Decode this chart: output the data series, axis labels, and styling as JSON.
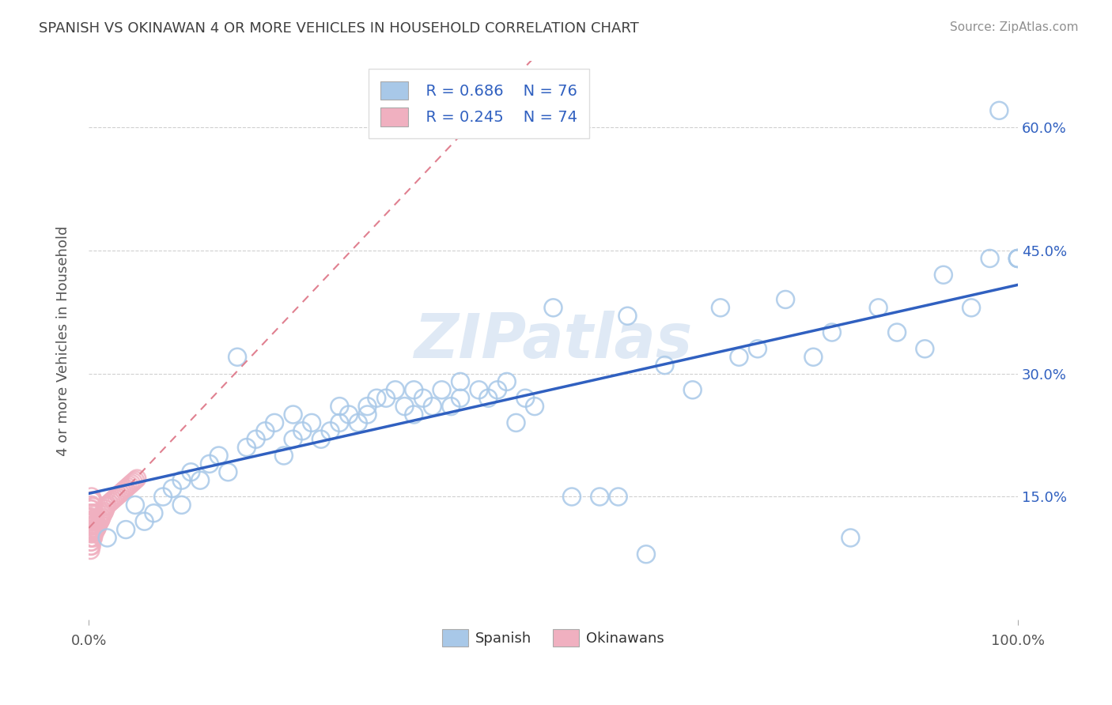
{
  "title": "SPANISH VS OKINAWAN 4 OR MORE VEHICLES IN HOUSEHOLD CORRELATION CHART",
  "source": "Source: ZipAtlas.com",
  "ylabel": "4 or more Vehicles in Household",
  "watermark": "ZIPatlas",
  "legend_r_spanish": "R = 0.686",
  "legend_n_spanish": "N = 76",
  "legend_r_okinawan": "R = 0.245",
  "legend_n_okinawan": "N = 74",
  "xlim": [
    0.0,
    1.0
  ],
  "ylim": [
    0.0,
    0.68
  ],
  "ytick_labels": [
    "15.0%",
    "30.0%",
    "45.0%",
    "60.0%"
  ],
  "ytick_values": [
    0.15,
    0.3,
    0.45,
    0.6
  ],
  "spanish_color": "#a8c8e8",
  "okinawan_color": "#f0b0c0",
  "spanish_line_color": "#3060c0",
  "okinawan_line_color": "#e08090",
  "label_color": "#3060c0",
  "title_color": "#404040",
  "source_color": "#909090",
  "background_color": "#ffffff",
  "grid_color": "#d0d0d0",
  "spanish_x": [
    0.02,
    0.04,
    0.05,
    0.06,
    0.07,
    0.08,
    0.09,
    0.1,
    0.1,
    0.11,
    0.12,
    0.13,
    0.14,
    0.15,
    0.16,
    0.17,
    0.18,
    0.19,
    0.2,
    0.21,
    0.22,
    0.22,
    0.23,
    0.24,
    0.25,
    0.26,
    0.27,
    0.27,
    0.28,
    0.29,
    0.3,
    0.3,
    0.31,
    0.32,
    0.33,
    0.34,
    0.35,
    0.35,
    0.36,
    0.37,
    0.38,
    0.39,
    0.4,
    0.4,
    0.42,
    0.43,
    0.44,
    0.45,
    0.46,
    0.47,
    0.48,
    0.5,
    0.52,
    0.55,
    0.57,
    0.58,
    0.6,
    0.62,
    0.65,
    0.68,
    0.7,
    0.72,
    0.75,
    0.78,
    0.8,
    0.82,
    0.85,
    0.87,
    0.9,
    0.92,
    0.95,
    0.97,
    0.98,
    1.0,
    1.0,
    1.0
  ],
  "spanish_y": [
    0.1,
    0.11,
    0.14,
    0.12,
    0.13,
    0.15,
    0.16,
    0.14,
    0.17,
    0.18,
    0.17,
    0.19,
    0.2,
    0.18,
    0.32,
    0.21,
    0.22,
    0.23,
    0.24,
    0.2,
    0.22,
    0.25,
    0.23,
    0.24,
    0.22,
    0.23,
    0.24,
    0.26,
    0.25,
    0.24,
    0.26,
    0.25,
    0.27,
    0.27,
    0.28,
    0.26,
    0.28,
    0.25,
    0.27,
    0.26,
    0.28,
    0.26,
    0.27,
    0.29,
    0.28,
    0.27,
    0.28,
    0.29,
    0.24,
    0.27,
    0.26,
    0.38,
    0.15,
    0.15,
    0.15,
    0.37,
    0.08,
    0.31,
    0.28,
    0.38,
    0.32,
    0.33,
    0.39,
    0.32,
    0.35,
    0.1,
    0.38,
    0.35,
    0.33,
    0.42,
    0.38,
    0.44,
    0.62,
    0.44,
    0.44,
    0.44
  ],
  "okinawan_x": [
    0.002,
    0.002,
    0.002,
    0.002,
    0.002,
    0.002,
    0.002,
    0.002,
    0.002,
    0.002,
    0.002,
    0.003,
    0.003,
    0.003,
    0.003,
    0.003,
    0.003,
    0.003,
    0.003,
    0.003,
    0.003,
    0.003,
    0.003,
    0.003,
    0.004,
    0.004,
    0.004,
    0.004,
    0.004,
    0.004,
    0.005,
    0.005,
    0.005,
    0.005,
    0.005,
    0.005,
    0.005,
    0.006,
    0.006,
    0.006,
    0.006,
    0.007,
    0.007,
    0.007,
    0.008,
    0.008,
    0.009,
    0.01,
    0.011,
    0.012,
    0.013,
    0.014,
    0.015,
    0.016,
    0.017,
    0.018,
    0.019,
    0.02,
    0.022,
    0.024,
    0.026,
    0.028,
    0.03,
    0.032,
    0.034,
    0.036,
    0.038,
    0.04,
    0.042,
    0.044,
    0.046,
    0.048,
    0.05,
    0.052
  ],
  "okinawan_y": [
    0.085,
    0.09,
    0.095,
    0.1,
    0.105,
    0.11,
    0.115,
    0.12,
    0.125,
    0.13,
    0.135,
    0.09,
    0.095,
    0.1,
    0.105,
    0.11,
    0.115,
    0.12,
    0.125,
    0.13,
    0.135,
    0.14,
    0.145,
    0.15,
    0.1,
    0.108,
    0.115,
    0.122,
    0.13,
    0.138,
    0.1,
    0.108,
    0.115,
    0.122,
    0.13,
    0.138,
    0.145,
    0.105,
    0.112,
    0.12,
    0.128,
    0.108,
    0.116,
    0.124,
    0.11,
    0.118,
    0.112,
    0.115,
    0.118,
    0.12,
    0.122,
    0.125,
    0.128,
    0.13,
    0.132,
    0.135,
    0.138,
    0.14,
    0.142,
    0.144,
    0.146,
    0.148,
    0.15,
    0.152,
    0.154,
    0.156,
    0.158,
    0.16,
    0.162,
    0.164,
    0.166,
    0.168,
    0.17,
    0.172
  ]
}
